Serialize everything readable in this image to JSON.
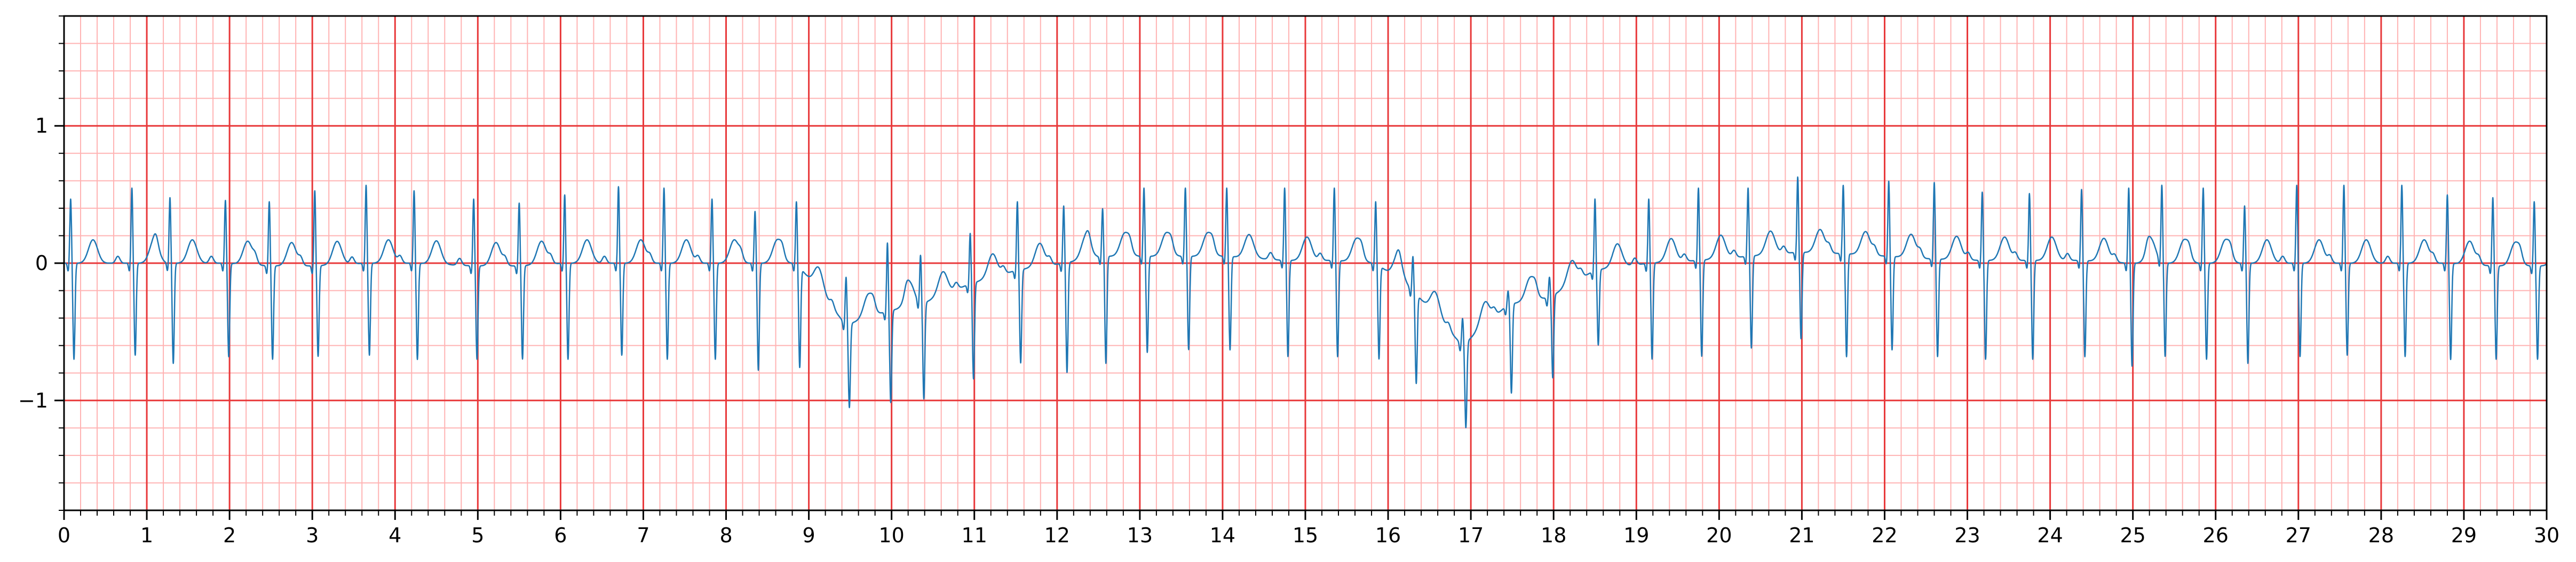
{
  "chart_data": {
    "type": "line",
    "title": "",
    "xlabel": "",
    "ylabel": "",
    "xlim": [
      0,
      30
    ],
    "ylim": [
      -1.8,
      1.8
    ],
    "x_ticks": [
      0,
      1,
      2,
      3,
      4,
      5,
      6,
      7,
      8,
      9,
      10,
      11,
      12,
      13,
      14,
      15,
      16,
      17,
      18,
      19,
      20,
      21,
      22,
      23,
      24,
      25,
      26,
      27,
      28,
      29,
      30
    ],
    "x_tick_labels": [
      "0",
      "1",
      "2",
      "3",
      "4",
      "5",
      "6",
      "7",
      "8",
      "9",
      "10",
      "11",
      "12",
      "13",
      "14",
      "15",
      "16",
      "17",
      "18",
      "19",
      "20",
      "21",
      "22",
      "23",
      "24",
      "25",
      "26",
      "27",
      "28",
      "29",
      "30"
    ],
    "y_ticks": [
      -1,
      0,
      1
    ],
    "y_tick_labels": [
      "−1",
      "0",
      "1"
    ],
    "grid": {
      "major": true,
      "minor": true,
      "major_step_x": 1,
      "minor_step_x": 0.2,
      "major_step_y": 1,
      "minor_step_y": 0.2
    },
    "colors": {
      "trace": "#1f77b4",
      "major_grid": "#e8383a",
      "minor_grid": "#ffb3b3",
      "frame": "#000000"
    },
    "series": [
      {
        "beats": [
          {
            "t": 0.08,
            "r": 0.47,
            "s": -0.7,
            "base": 0.0
          },
          {
            "t": 0.82,
            "r": 0.55,
            "s": -0.67,
            "base": 0.0
          },
          {
            "t": 1.28,
            "r": 0.48,
            "s": -0.73,
            "base": 0.0
          },
          {
            "t": 1.95,
            "r": 0.46,
            "s": -0.68,
            "base": 0.0
          },
          {
            "t": 2.48,
            "r": 0.45,
            "s": -0.7,
            "base": -0.02
          },
          {
            "t": 3.03,
            "r": 0.53,
            "s": -0.68,
            "base": -0.02
          },
          {
            "t": 3.65,
            "r": 0.57,
            "s": -0.67,
            "base": 0.0
          },
          {
            "t": 4.23,
            "r": 0.53,
            "s": -0.7,
            "base": 0.0
          },
          {
            "t": 4.95,
            "r": 0.47,
            "s": -0.7,
            "base": -0.02
          },
          {
            "t": 5.5,
            "r": 0.44,
            "s": -0.7,
            "base": -0.02
          },
          {
            "t": 6.05,
            "r": 0.5,
            "s": -0.7,
            "base": 0.0
          },
          {
            "t": 6.7,
            "r": 0.56,
            "s": -0.67,
            "base": 0.0
          },
          {
            "t": 7.25,
            "r": 0.55,
            "s": -0.7,
            "base": 0.0
          },
          {
            "t": 7.83,
            "r": 0.47,
            "s": -0.7,
            "base": 0.0
          },
          {
            "t": 8.35,
            "r": 0.38,
            "s": -0.78,
            "base": 0.0
          },
          {
            "t": 8.85,
            "r": 0.45,
            "s": -0.73,
            "base": 0.0
          },
          {
            "t": 9.45,
            "r": -0.1,
            "s": -1.06,
            "base": -0.45
          },
          {
            "t": 9.95,
            "r": 0.15,
            "s": -1.02,
            "base": -0.35
          },
          {
            "t": 10.35,
            "r": 0.05,
            "s": -1.0,
            "base": -0.3
          },
          {
            "t": 10.95,
            "r": 0.22,
            "s": -0.85,
            "base": -0.15
          },
          {
            "t": 11.52,
            "r": 0.45,
            "s": -0.73,
            "base": -0.05
          },
          {
            "t": 12.08,
            "r": 0.42,
            "s": -0.8,
            "base": 0.0
          },
          {
            "t": 12.55,
            "r": 0.4,
            "s": -0.73,
            "base": 0.05
          },
          {
            "t": 13.05,
            "r": 0.55,
            "s": -0.65,
            "base": 0.05
          },
          {
            "t": 13.55,
            "r": 0.55,
            "s": -0.63,
            "base": 0.05
          },
          {
            "t": 14.05,
            "r": 0.55,
            "s": -0.63,
            "base": 0.05
          },
          {
            "t": 14.75,
            "r": 0.55,
            "s": -0.68,
            "base": 0.02
          },
          {
            "t": 15.35,
            "r": 0.55,
            "s": -0.68,
            "base": 0.02
          },
          {
            "t": 15.85,
            "r": 0.45,
            "s": -0.68,
            "base": 0.0
          },
          {
            "t": 16.3,
            "r": 0.05,
            "s": -0.85,
            "base": -0.2
          },
          {
            "t": 16.9,
            "r": -0.4,
            "s": -1.22,
            "base": -0.6
          },
          {
            "t": 17.45,
            "r": -0.2,
            "s": -0.95,
            "base": -0.3
          },
          {
            "t": 17.95,
            "r": -0.1,
            "s": -0.85,
            "base": -0.25
          },
          {
            "t": 18.5,
            "r": 0.47,
            "s": -0.6,
            "base": -0.05
          },
          {
            "t": 19.15,
            "r": 0.47,
            "s": -0.7,
            "base": 0.0
          },
          {
            "t": 19.75,
            "r": 0.55,
            "s": -0.68,
            "base": 0.02
          },
          {
            "t": 20.35,
            "r": 0.55,
            "s": -0.62,
            "base": 0.05
          },
          {
            "t": 20.95,
            "r": 0.63,
            "s": -0.55,
            "base": 0.08
          },
          {
            "t": 21.5,
            "r": 0.57,
            "s": -0.68,
            "base": 0.07
          },
          {
            "t": 22.05,
            "r": 0.6,
            "s": -0.63,
            "base": 0.05
          },
          {
            "t": 22.6,
            "r": 0.59,
            "s": -0.68,
            "base": 0.03
          },
          {
            "t": 23.18,
            "r": 0.52,
            "s": -0.7,
            "base": 0.02
          },
          {
            "t": 23.75,
            "r": 0.51,
            "s": -0.7,
            "base": 0.02
          },
          {
            "t": 24.38,
            "r": 0.54,
            "s": -0.68,
            "base": 0.02
          },
          {
            "t": 24.95,
            "r": 0.55,
            "s": -0.75,
            "base": 0.0
          },
          {
            "t": 25.35,
            "r": 0.56,
            "s": -0.68,
            "base": 0.0
          },
          {
            "t": 25.85,
            "r": 0.55,
            "s": -0.7,
            "base": 0.0
          },
          {
            "t": 26.35,
            "r": 0.42,
            "s": -0.73,
            "base": 0.0
          },
          {
            "t": 26.98,
            "r": 0.57,
            "s": -0.68,
            "base": 0.0
          },
          {
            "t": 27.55,
            "r": 0.57,
            "s": -0.67,
            "base": 0.0
          },
          {
            "t": 28.25,
            "r": 0.57,
            "s": -0.68,
            "base": 0.0
          },
          {
            "t": 28.8,
            "r": 0.5,
            "s": -0.7,
            "base": 0.0
          },
          {
            "t": 29.35,
            "r": 0.48,
            "s": -0.7,
            "base": -0.02
          },
          {
            "t": 29.85,
            "r": 0.45,
            "s": -0.7,
            "base": -0.02
          }
        ]
      }
    ]
  }
}
